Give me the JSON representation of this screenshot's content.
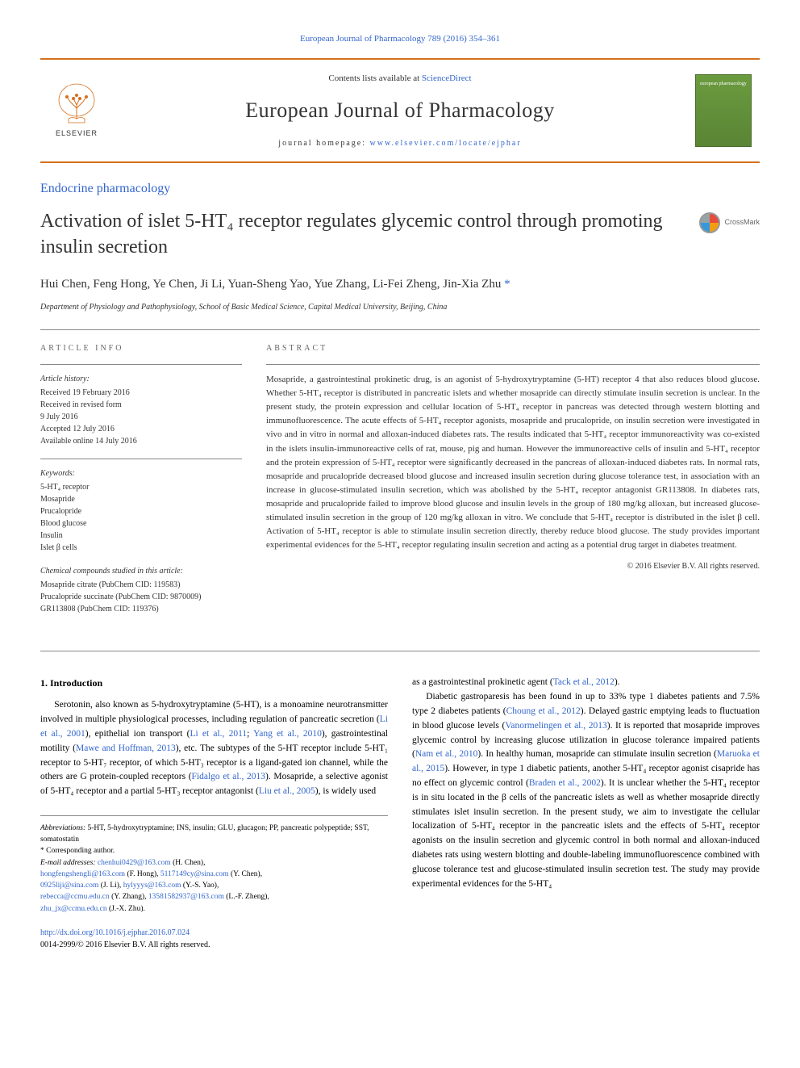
{
  "header": {
    "top_link": "European Journal of Pharmacology 789 (2016) 354–361",
    "contents_prefix": "Contents lists available at ",
    "contents_link": "ScienceDirect",
    "journal_name": "European Journal of Pharmacology",
    "homepage_prefix": "journal homepage: ",
    "homepage_link": "www.elsevier.com/locate/ejphar",
    "elsevier": "ELSEVIER",
    "cover_text": "european pharmacology"
  },
  "section_label": "Endocrine pharmacology",
  "title": "Activation of islet 5-HT₄ receptor regulates glycemic control through promoting insulin secretion",
  "crossmark": "CrossMark",
  "authors": "Hui Chen, Feng Hong, Ye Chen, Ji Li, Yuan-Sheng Yao, Yue Zhang, Li-Fei Zheng, Jin-Xia Zhu",
  "corr_symbol": "*",
  "affiliation": "Department of Physiology and Pathophysiology, School of Basic Medical Science, Capital Medical University, Beijing, China",
  "article_info": {
    "heading": "ARTICLE INFO",
    "history_label": "Article history:",
    "history": [
      "Received 19 February 2016",
      "Received in revised form",
      "9 July 2016",
      "Accepted 12 July 2016",
      "Available online 14 July 2016"
    ],
    "keywords_label": "Keywords:",
    "keywords": [
      "5-HT₄ receptor",
      "Mosapride",
      "Prucalopride",
      "Blood glucose",
      "Insulin",
      "Islet β cells"
    ],
    "compounds_label": "Chemical compounds studied in this article:",
    "compounds": [
      "Mosapride citrate (PubChem CID: 119583)",
      "Prucalopride succinate (PubChem CID: 9870009)",
      "GR113808 (PubChem CID: 119376)"
    ]
  },
  "abstract": {
    "heading": "ABSTRACT",
    "text": "Mosapride, a gastrointestinal prokinetic drug, is an agonist of 5-hydroxytryptamine (5-HT) receptor 4 that also reduces blood glucose. Whether 5-HT₄ receptor is distributed in pancreatic islets and whether mosapride can directly stimulate insulin secretion is unclear. In the present study, the protein expression and cellular location of 5-HT₄ receptor in pancreas was detected through western blotting and immunofluorescence. The acute effects of 5-HT₄ receptor agonists, mosapride and prucalopride, on insulin secretion were investigated in vivo and in vitro in normal and alloxan-induced diabetes rats. The results indicated that 5-HT₄ receptor immunoreactivity was co-existed in the islets insulin-immunoreactive cells of rat, mouse, pig and human. However the immunoreactive cells of insulin and 5-HT₄ receptor and the protein expression of 5-HT₄ receptor were significantly decreased in the pancreas of alloxan-induced diabetes rats. In normal rats, mosapride and prucalopride decreased blood glucose and increased insulin secretion during glucose tolerance test, in association with an increase in glucose-stimulated insulin secretion, which was abolished by the 5-HT₄ receptor antagonist GR113808. In diabetes rats, mosapride and prucalopride failed to improve blood glucose and insulin levels in the group of 180 mg/kg alloxan, but increased glucose-stimulated insulin secretion in the group of 120 mg/kg alloxan in vitro. We conclude that 5-HT₄ receptor is distributed in the islet β cell. Activation of 5-HT₄ receptor is able to stimulate insulin secretion directly, thereby reduce blood glucose. The study provides important experimental evidences for the 5-HT₄ receptor regulating insulin secretion and acting as a potential drug target in diabetes treatment.",
    "copyright": "© 2016 Elsevier B.V. All rights reserved."
  },
  "intro": {
    "heading": "1. Introduction",
    "para1_parts": [
      "Serotonin, also known as 5-hydroxytryptamine (5-HT), is a monoamine neurotransmitter involved in multiple physiological processes, including regulation of pancreatic secretion (",
      "Li et al., 2001",
      "), epithelial ion transport (",
      "Li et al., 2011",
      "; ",
      "Yang et al., 2010",
      "), gastrointestinal motility (",
      "Mawe and Hoffman, 2013",
      "), etc. The subtypes of the 5-HT receptor include 5-HT₁ receptor to 5-HT₇ receptor, of which 5-HT₃ receptor is a ligand-gated ion channel, while the others are G protein-coupled receptors (",
      "Fidalgo et al., 2013",
      "). Mosapride, a selective agonist of 5-HT₄ receptor and a partial 5-HT₃ receptor antagonist (",
      "Liu et al., 2005",
      "), is widely used"
    ],
    "para2_parts": [
      "as a gastrointestinal prokinetic agent (",
      "Tack et al., 2012",
      ")."
    ],
    "para3_parts": [
      "Diabetic gastroparesis has been found in up to 33% type 1 diabetes patients and 7.5% type 2 diabetes patients (",
      "Choung et al., 2012",
      "). Delayed gastric emptying leads to fluctuation in blood glucose levels (",
      "Vanormelingen et al., 2013",
      "). It is reported that mosapride improves glycemic control by increasing glucose utilization in glucose tolerance impaired patients (",
      "Nam et al., 2010",
      "). In healthy human, mosapride can stimulate insulin secretion (",
      "Maruoka et al., 2015",
      "). However, in type 1 diabetic patients, another 5-HT₄ receptor agonist cisapride has no effect on glycemic control (",
      "Braden et al., 2002",
      "). It is unclear whether the 5-HT₄ receptor is in situ located in the β cells of the pancreatic islets as well as whether mosapride directly stimulates islet insulin secretion. In the present study, we aim to investigate the cellular localization of 5-HT₄ receptor in the pancreatic islets and the effects of 5-HT₄ receptor agonists on the insulin secretion and glycemic control in both normal and alloxan-induced diabetes rats using western blotting and double-labeling immunofluorescence combined with glucose tolerance test and glucose-stimulated insulin secretion test. The study may provide experimental evidences for the 5-HT₄"
    ]
  },
  "footnotes": {
    "abbrev_label": "Abbreviations:",
    "abbrev": " 5-HT, 5-hydroxytryptamine; INS, insulin; GLU, glucagon; PP, pancreatic polypeptide; SST, somatostatin",
    "corr": "* Corresponding author.",
    "email_label": "E-mail addresses: ",
    "emails": [
      {
        "addr": "chenhui0429@163.com",
        "name": " (H. Chen),"
      },
      {
        "addr": "hongfengshengli@163.com",
        "name": " (F. Hong), "
      },
      {
        "addr": "5117149cy@sina.com",
        "name": " (Y. Chen),"
      },
      {
        "addr": "0925liji@sina.com",
        "name": " (J. Li), "
      },
      {
        "addr": "hylyyys@163.com",
        "name": " (Y.-S. Yao),"
      },
      {
        "addr": "rebecca@ccmu.edu.cn",
        "name": " (Y. Zhang), "
      },
      {
        "addr": "13581582937@163.com",
        "name": " (L.-F. Zheng),"
      },
      {
        "addr": "zhu_jx@ccmu.edu.cn",
        "name": " (J.-X. Zhu)."
      }
    ]
  },
  "doi": {
    "link": "http://dx.doi.org/10.1016/j.ejphar.2016.07.024",
    "issn": "0014-2999/© 2016 Elsevier B.V. All rights reserved."
  },
  "colors": {
    "link": "#3366cc",
    "rule": "#d4701e",
    "text": "#333333",
    "cover_bg": "#6b9b3f"
  }
}
